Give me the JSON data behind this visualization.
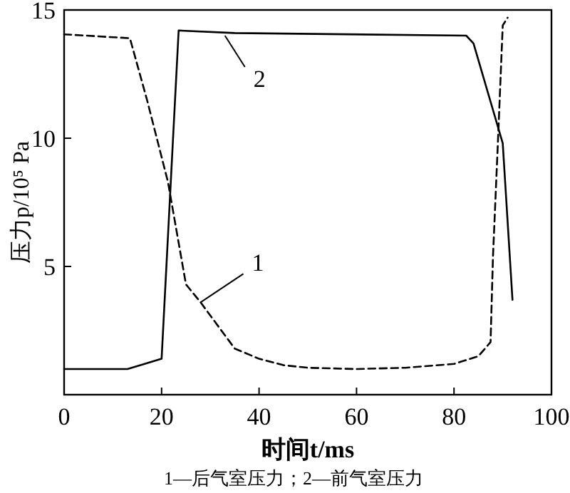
{
  "chart_data": {
    "type": "line",
    "xlabel": "时间t/ms",
    "ylabel": "压力p/10⁵ Pa",
    "xlim": [
      0,
      100
    ],
    "ylim": [
      0,
      15
    ],
    "xticks": [
      0,
      20,
      40,
      60,
      80,
      100
    ],
    "yticks": [
      5,
      10,
      15
    ],
    "series": [
      {
        "line_style": "dashed",
        "color": "#000000",
        "x": [
          0,
          13.5,
          17,
          21.3,
          25,
          28,
          35,
          40,
          45,
          50,
          60,
          70,
          80,
          85,
          87.5,
          88,
          89,
          90,
          91
        ],
        "values": [
          14.05,
          13.9,
          11.5,
          8.3,
          4.3,
          3.6,
          1.8,
          1.4,
          1.15,
          1.05,
          1.0,
          1.05,
          1.2,
          1.5,
          2.05,
          5.4,
          9.8,
          14.4,
          14.7
        ]
      },
      {
        "line_style": "solid",
        "color": "#000000",
        "x": [
          0,
          13,
          20,
          23.5,
          35,
          82.5,
          84,
          90,
          92
        ],
        "values": [
          1.0,
          1.0,
          1.4,
          14.2,
          14.1,
          14.0,
          13.7,
          9.8,
          3.7
        ]
      }
    ],
    "annotations": [
      {
        "text": "1",
        "x": 28,
        "y": 3.6
      },
      {
        "text": "2",
        "x": 33,
        "y": 14.0
      },
      "1—后气室压力；2—前气室压力"
    ]
  }
}
